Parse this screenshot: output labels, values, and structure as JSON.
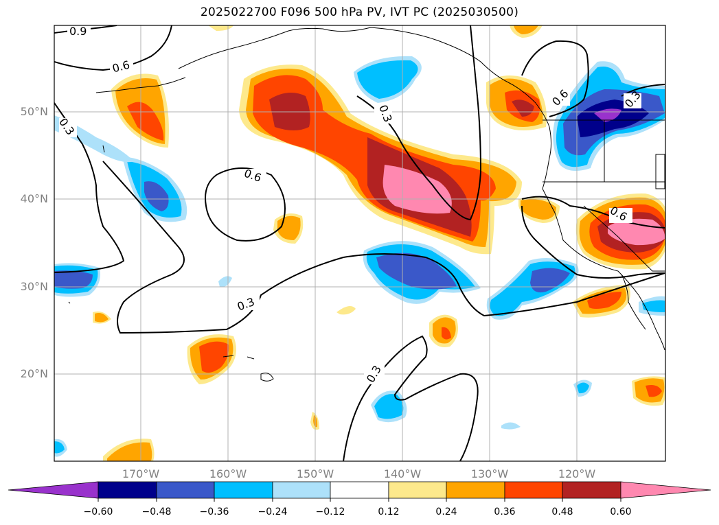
{
  "title": "2025022700 F096 500 hPa PV, IVT PC (2025030500)",
  "map": {
    "lat_labels": [
      "50°N",
      "40°N",
      "30°N",
      "20°N"
    ],
    "lon_labels": [
      "170°W",
      "160°W",
      "150°W",
      "140°W",
      "130°W",
      "120°W"
    ],
    "contour_labels": [
      "0.9",
      "0.6",
      "0.3",
      "0.3",
      "0.6",
      "0.3",
      "0.6",
      "0.6",
      "0.3",
      "0.3",
      "0.3"
    ],
    "gridlines": true,
    "land_color": "#ffffff",
    "coastline_color": "#000000"
  },
  "colorbar": {
    "tick_labels": [
      "−0.60",
      "−0.48",
      "−0.36",
      "−0.24",
      "−0.12",
      "0.12",
      "0.24",
      "0.36",
      "0.48",
      "0.60"
    ],
    "colors": [
      "#9932cc",
      "#00008b",
      "#3a58c9",
      "#00bfff",
      "#ade1fa",
      "#ffffff",
      "#fde98c",
      "#ffa500",
      "#ff4500",
      "#b22222",
      "#ff88b0"
    ],
    "extend": "both"
  }
}
